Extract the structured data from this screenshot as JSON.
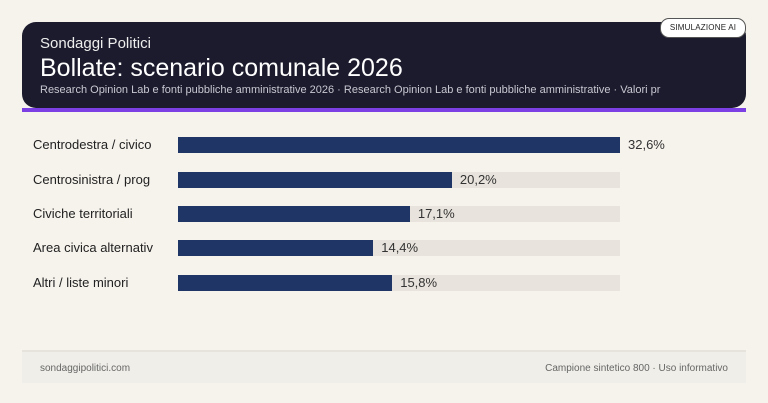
{
  "header": {
    "kicker": "Sondaggi Politici",
    "title": "Bollate: scenario comunale 2026",
    "subtitle": "Research Opinion Lab e fonti pubbliche amministrative 2026 · Research Opinion Lab e fonti pubbliche amministrative · Valori pr",
    "badge": "SIMULAZIONE AI"
  },
  "colors": {
    "bar": "#1e3566",
    "track": "#e8e3dc",
    "accent": "#7b3fe4",
    "header_bg": "#1b1b2d"
  },
  "chart_data": {
    "type": "bar",
    "orientation": "horizontal",
    "categories": [
      "Centrodestra / civico",
      "Centrosinistra / prog",
      "Civiche territoriali",
      "Area civica alternativ",
      "Altri / liste minori"
    ],
    "values": [
      32.6,
      20.2,
      17.1,
      14.4,
      15.8
    ],
    "value_labels": [
      "32,6%",
      "20,2%",
      "17,1%",
      "14,4%",
      "15,8%"
    ],
    "unit": "%",
    "xlim": [
      0,
      32.6
    ]
  },
  "footer": {
    "left": "sondaggipolitici.com",
    "right": "Campione sintetico 800 · Uso informativo"
  }
}
